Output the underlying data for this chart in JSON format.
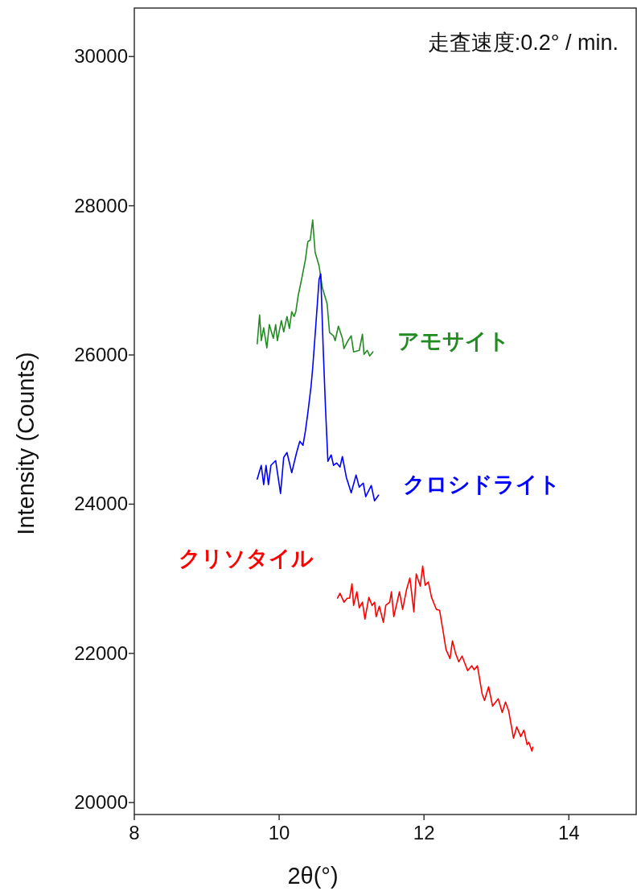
{
  "chart_data": {
    "type": "line",
    "xlabel": "2θ(°)",
    "ylabel": "Intensity (Counts)",
    "xlim": [
      8,
      14.93
    ],
    "xticks": [
      8,
      10,
      12,
      14
    ],
    "ylim": [
      19840,
      30650
    ],
    "yticks": [
      20000,
      22000,
      24000,
      26000,
      28000,
      30000
    ],
    "grid": false,
    "marker": "none",
    "line_style": "solid",
    "annotations": [
      "走査速度:0.2°  /  min."
    ],
    "series": [
      {
        "name": "アモサイト",
        "color": "#228b22",
        "x": [
          9.697,
          9.73,
          9.753,
          9.786,
          9.83,
          9.864,
          9.919,
          9.952,
          9.975,
          10.03,
          10.063,
          10.108,
          10.141,
          10.174,
          10.207,
          10.23,
          10.263,
          10.307,
          10.363,
          10.396,
          10.429,
          10.463,
          10.496,
          10.551,
          10.596,
          10.662,
          10.696,
          10.751,
          10.773,
          10.818,
          10.873,
          10.895,
          10.951,
          10.995,
          11.028,
          11.106,
          11.15,
          11.172,
          11.217,
          11.25,
          11.295
        ],
        "values": [
          26150,
          26537,
          26192,
          26364,
          26095,
          26407,
          26224,
          26407,
          26192,
          26461,
          26310,
          26515,
          26354,
          26580,
          26515,
          26580,
          26796,
          27001,
          27281,
          27519,
          27540,
          27810,
          27378,
          27195,
          26904,
          26688,
          26300,
          26256,
          26192,
          26386,
          26224,
          26084,
          26192,
          26256,
          26041,
          26062,
          26278,
          26008,
          26062,
          25987,
          26041
        ]
      },
      {
        "name": "クロシドライト",
        "color": "#0000ff",
        "x": [
          9.697,
          9.753,
          9.786,
          9.819,
          9.852,
          9.886,
          9.952,
          10.019,
          10.063,
          10.108,
          10.174,
          10.241,
          10.285,
          10.329,
          10.363,
          10.396,
          10.44,
          10.463,
          10.507,
          10.551,
          10.574,
          10.607,
          10.64,
          10.673,
          10.718,
          10.751,
          10.795,
          10.84,
          10.873,
          10.928,
          10.995,
          11.062,
          11.106,
          11.161,
          11.195,
          11.272,
          11.317,
          11.372
        ],
        "values": [
          24336,
          24520,
          24261,
          24520,
          24261,
          24520,
          24584,
          24142,
          24628,
          24692,
          24423,
          24692,
          24843,
          24789,
          24984,
          25221,
          25577,
          25825,
          26407,
          27012,
          27087,
          26116,
          25286,
          24574,
          24660,
          24520,
          24552,
          24498,
          24638,
          24358,
          24153,
          24390,
          24229,
          24282,
          24099,
          24250,
          24045,
          24121
        ]
      },
      {
        "name": "クリソタイル",
        "color": "#ff0000",
        "x": [
          10.806,
          10.84,
          10.895,
          10.94,
          10.973,
          11.006,
          11.028,
          11.073,
          11.106,
          11.15,
          11.184,
          11.239,
          11.283,
          11.317,
          11.339,
          11.383,
          11.439,
          11.472,
          11.527,
          11.55,
          11.583,
          11.661,
          11.705,
          11.76,
          11.805,
          11.86,
          11.893,
          11.949,
          11.982,
          12.016,
          12.06,
          12.104,
          12.171,
          12.215,
          12.26,
          12.304,
          12.359,
          12.393,
          12.437,
          12.481,
          12.526,
          12.603,
          12.659,
          12.692,
          12.737,
          12.803,
          12.836,
          12.892,
          12.947,
          13.025,
          13.08,
          13.125,
          13.169,
          13.236,
          13.28,
          13.336,
          13.38,
          13.424,
          13.447,
          13.491,
          13.502
        ],
        "values": [
          22740,
          22805,
          22686,
          22740,
          22740,
          22934,
          22643,
          22826,
          22610,
          22686,
          22459,
          22751,
          22643,
          22686,
          22492,
          22632,
          22416,
          22643,
          22686,
          22826,
          22492,
          22826,
          22589,
          22859,
          23010,
          22557,
          23064,
          22902,
          23171,
          22912,
          22956,
          22751,
          22589,
          22578,
          22319,
          22050,
          21931,
          22168,
          21996,
          21888,
          21963,
          21769,
          21834,
          21780,
          21834,
          21456,
          21370,
          21553,
          21294,
          21392,
          21208,
          21348,
          21230,
          20863,
          21014,
          20885,
          20971,
          20777,
          20809,
          20690,
          20744
        ]
      }
    ]
  }
}
